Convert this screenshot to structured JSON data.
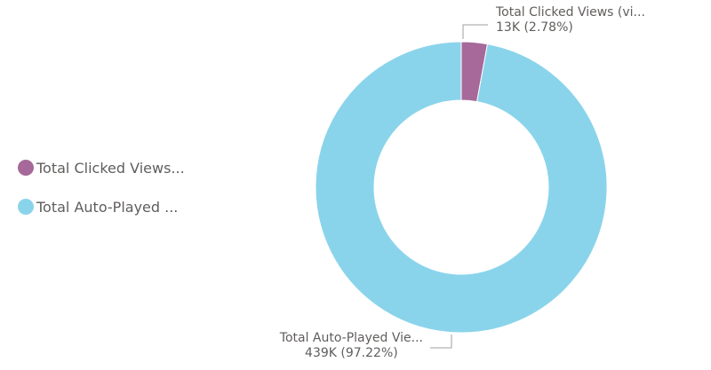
{
  "chart_data": {
    "type": "donut",
    "series": [
      {
        "name": "Total Clicked Views...",
        "label_name": "Total Clicked Views (vi...",
        "value": 13000,
        "value_label": "13K",
        "percent": 2.78,
        "percent_label": "(2.78%)",
        "color": "#a66999"
      },
      {
        "name": "Total Auto-Played ...",
        "label_name": "Total Auto-Played Vie...",
        "value": 439000,
        "value_label": "439K",
        "percent": 97.22,
        "percent_label": "(97.22%)",
        "color": "#8ad4eb"
      }
    ],
    "legend": "left",
    "title": ""
  }
}
